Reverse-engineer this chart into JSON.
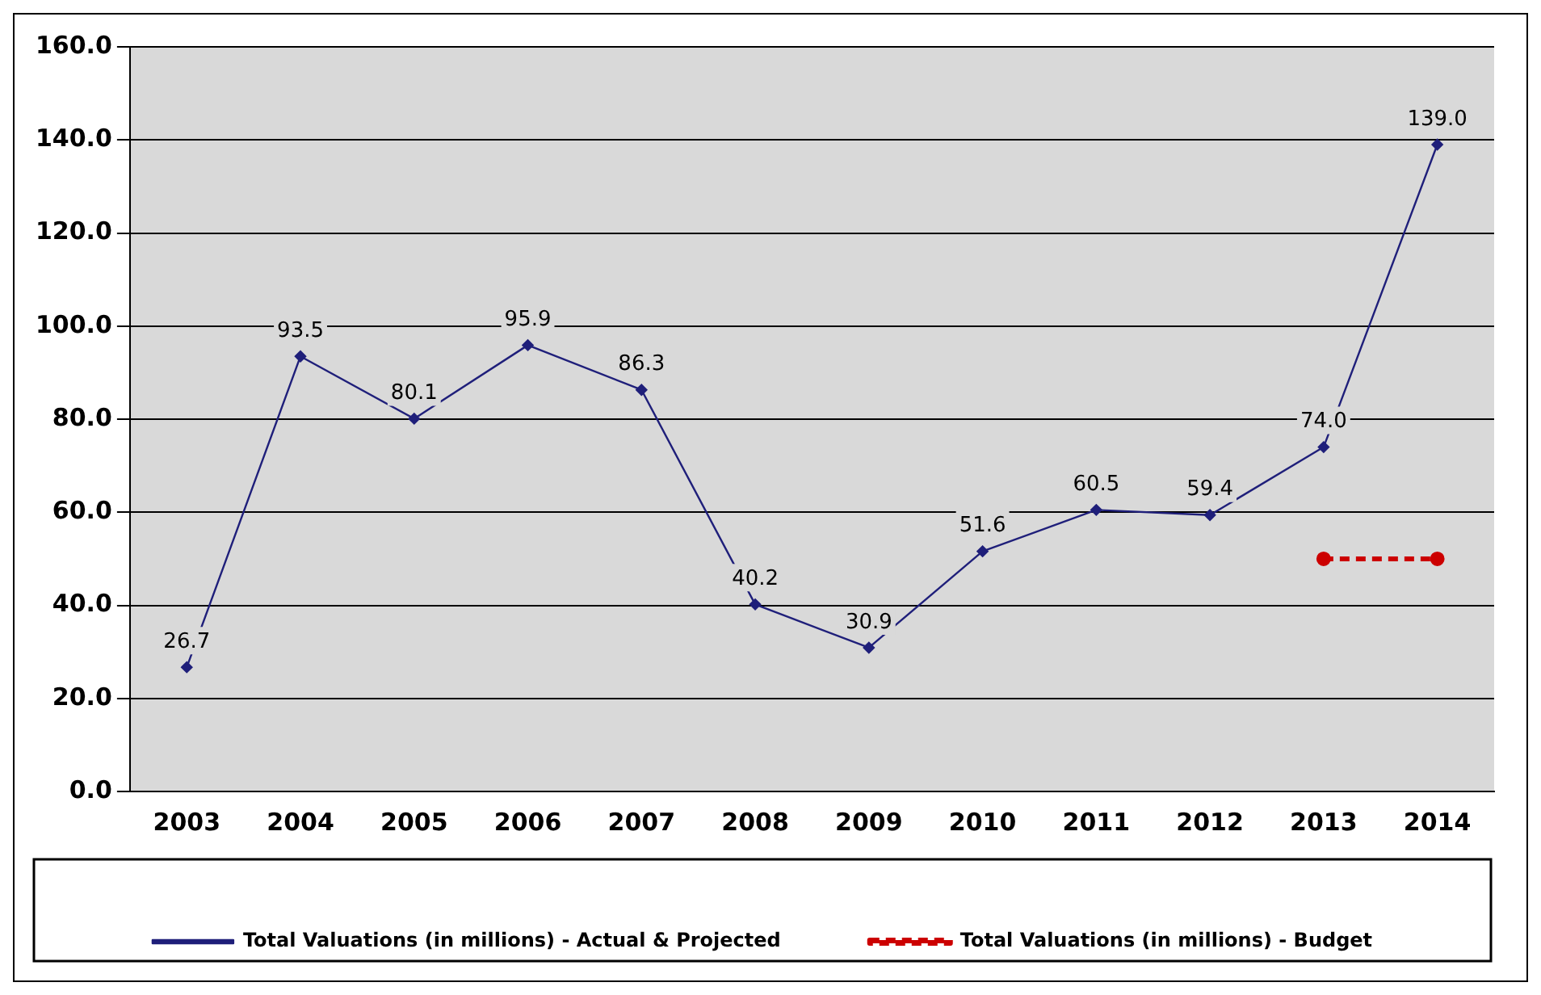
{
  "chart_data": {
    "type": "line",
    "categories": [
      "2003",
      "2004",
      "2005",
      "2006",
      "2007",
      "2008",
      "2009",
      "2010",
      "2011",
      "2012",
      "2013",
      "2014"
    ],
    "series": [
      {
        "name": "Total Valuations (in millions) - Actual & Projected",
        "color": "#1f1f7a",
        "marker": "diamond",
        "values": [
          26.7,
          93.5,
          80.1,
          95.9,
          86.3,
          40.2,
          30.9,
          51.6,
          60.5,
          59.4,
          74.0,
          139.0
        ],
        "value_labels": [
          "26.7",
          "93.5",
          "80.1",
          "95.9",
          "86.3",
          "40.2",
          "30.9",
          "51.6",
          "60.5",
          "59.4",
          "74.0",
          "139.0"
        ]
      },
      {
        "name": "Total Valuations (in millions) - Budget",
        "color": "#cc0000",
        "marker": "circle",
        "line_style": "dashed",
        "values": [
          null,
          null,
          null,
          null,
          null,
          null,
          null,
          null,
          null,
          null,
          50,
          50
        ]
      }
    ],
    "ylim": [
      0,
      160
    ],
    "yticks": [
      {
        "value": 0,
        "label": "0.0"
      },
      {
        "value": 20,
        "label": "20.0"
      },
      {
        "value": 40,
        "label": "40.0"
      },
      {
        "value": 60,
        "label": "60.0"
      },
      {
        "value": 80,
        "label": "80.0"
      },
      {
        "value": 100,
        "label": "100.0"
      },
      {
        "value": 120,
        "label": "120.0"
      },
      {
        "value": 140,
        "label": "140.0"
      },
      {
        "value": 160,
        "label": "160.0"
      }
    ],
    "grid": "y",
    "legend": "bottom"
  }
}
